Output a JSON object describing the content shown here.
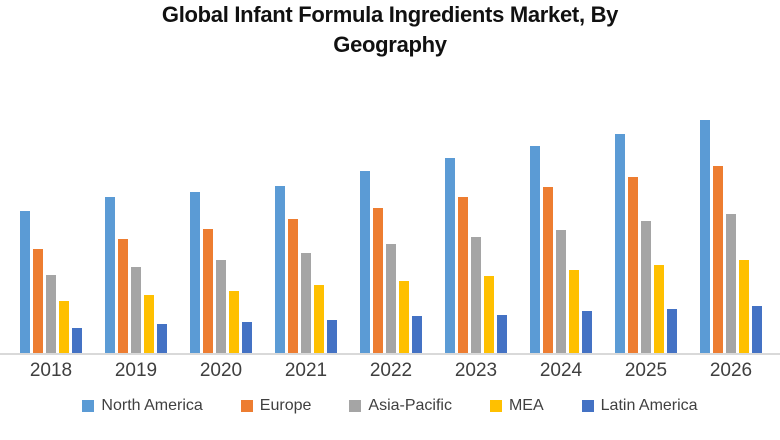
{
  "title": "Global Infant Formula Ingredients Market, By Geography",
  "title_lines": [
    "Global Infant Formula Ingredients Market, By",
    "Geography"
  ],
  "colors": {
    "north_america": "#5B9BD5",
    "europe": "#ED7D31",
    "asia_pacific": "#A5A5A5",
    "mea": "#FFC000",
    "latin_america": "#4472C4",
    "axis_line": "#d9d9d9",
    "tick_text": "#3f3f3f",
    "legend_text": "#404040",
    "title_text": "#111111"
  },
  "chart_data": {
    "type": "bar",
    "title": "Global Infant Formula Ingredients Market, By Geography",
    "categories": [
      "2018",
      "2019",
      "2020",
      "2021",
      "2022",
      "2023",
      "2024",
      "2025",
      "2026"
    ],
    "series": [
      {
        "name": "North America",
        "color": "#5B9BD5",
        "values": [
          143,
          157,
          162,
          168,
          183,
          196,
          208,
          221,
          235
        ]
      },
      {
        "name": "Europe",
        "color": "#ED7D31",
        "values": [
          105,
          115,
          125,
          135,
          146,
          157,
          167,
          177,
          188
        ]
      },
      {
        "name": "Asia-Pacific",
        "color": "#A5A5A5",
        "values": [
          78,
          86,
          93,
          101,
          110,
          117,
          124,
          133,
          140
        ]
      },
      {
        "name": "MEA",
        "color": "#FFC000",
        "values": [
          52,
          58,
          62,
          68,
          72,
          77,
          83,
          88,
          93
        ]
      },
      {
        "name": "Latin America",
        "color": "#4472C4",
        "values": [
          25,
          29,
          31,
          33,
          37,
          38,
          42,
          44,
          47
        ]
      }
    ],
    "xlabel": "",
    "ylabel": "",
    "ylim": [
      0,
      250
    ],
    "value_axis_visible": false,
    "units": "relative (no value axis shown in chart)",
    "grid": false,
    "legend_position": "bottom"
  }
}
